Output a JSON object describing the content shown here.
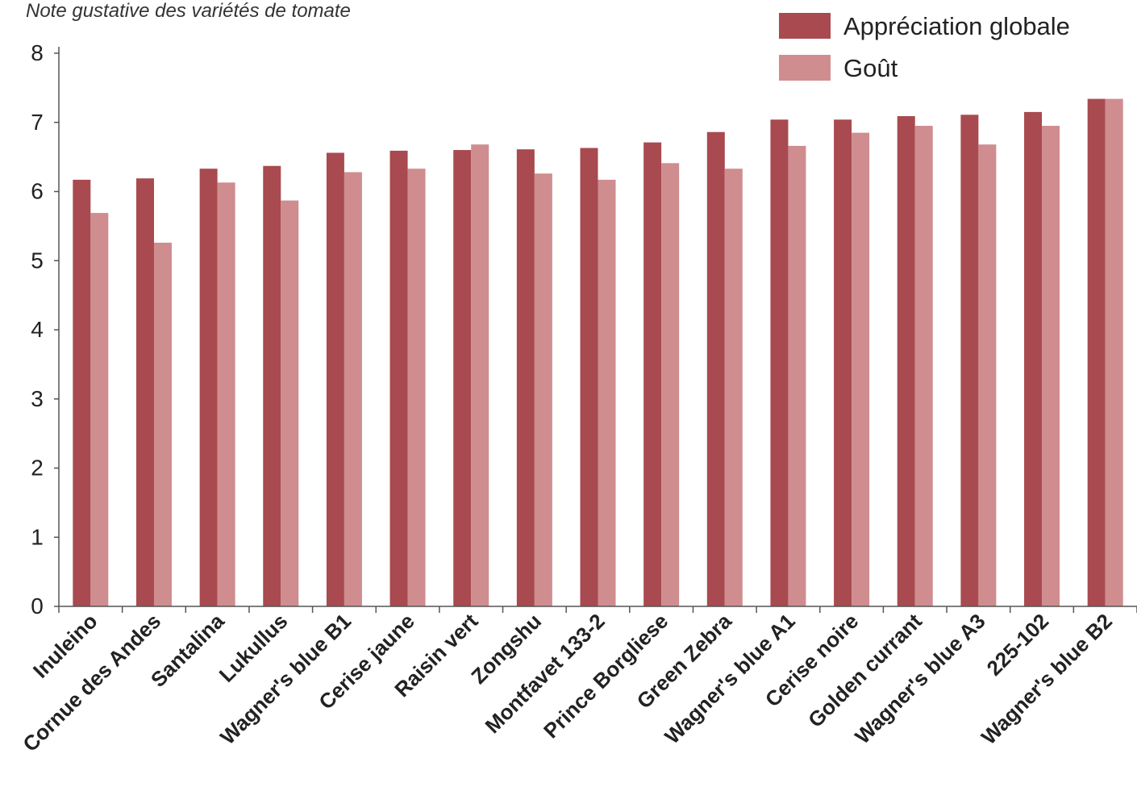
{
  "chart_data": {
    "type": "bar",
    "title": "Note gustative des variétés de tomate",
    "xlabel": "",
    "ylabel": "",
    "ylim": [
      0,
      8
    ],
    "yticks": [
      "0",
      "1",
      "2",
      "3",
      "4",
      "5",
      "6",
      "7",
      "8"
    ],
    "grid": false,
    "legend_position": "top-right",
    "categories": [
      "Inuleino",
      "Cornue des Andes",
      "Santalina",
      "Lukullus",
      "Wagner's blue B1",
      "Cerise jaune",
      "Raisin vert",
      "Zongshu",
      "Montfavet 133-2",
      "Prince Borgliese",
      "Green Zebra",
      "Wagner's blue A1",
      "Cerise noire",
      "Golden currant",
      "Wagner's blue A3",
      "225-102",
      "Wagner's blue B2"
    ],
    "series": [
      {
        "name": "Appréciation globale",
        "color": "#a84a4f",
        "values": [
          6.17,
          6.19,
          6.33,
          6.37,
          6.56,
          6.59,
          6.6,
          6.61,
          6.63,
          6.71,
          6.86,
          7.04,
          7.04,
          7.09,
          7.11,
          7.15,
          7.34
        ]
      },
      {
        "name": "Goût",
        "color": "#cf8d90",
        "values": [
          5.69,
          5.26,
          6.13,
          5.87,
          6.28,
          6.33,
          6.68,
          6.26,
          6.17,
          6.41,
          6.33,
          6.66,
          6.85,
          6.95,
          6.68,
          6.95,
          7.34
        ]
      }
    ]
  }
}
